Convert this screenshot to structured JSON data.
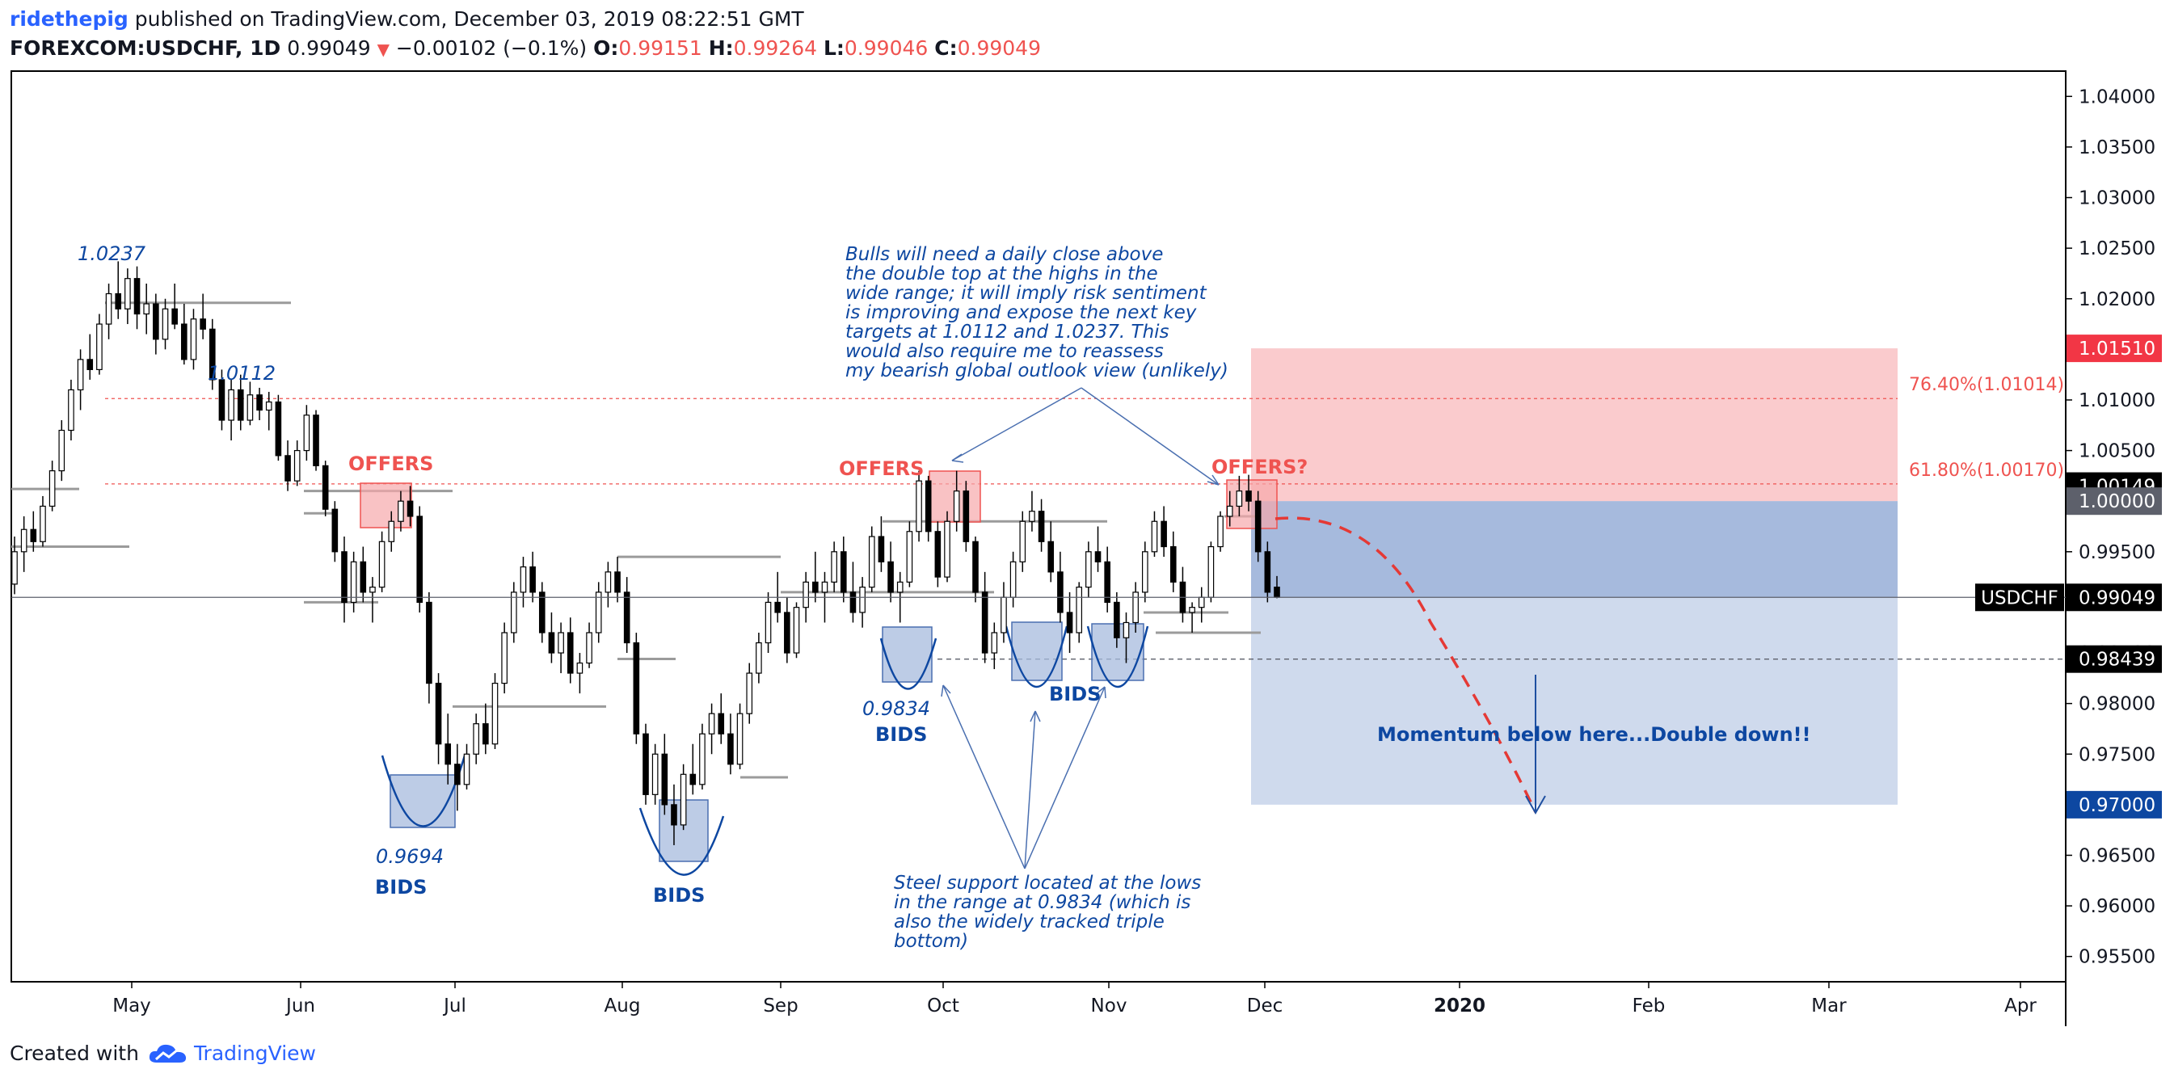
{
  "header": {
    "user": "ridethepig",
    "published": "published on TradingView.com, December 03, 2019 08:22:51 GMT",
    "symbol": "FOREXCOM:USDCHF, 1D",
    "last": "0.99049",
    "change": "−0.00102 (−0.1%)",
    "o_label": "O:",
    "o": "0.99151",
    "h_label": "H:",
    "h": "0.99264",
    "l_label": "L:",
    "l": "0.99046",
    "c_label": "C:",
    "c": "0.99049"
  },
  "footer": {
    "created": "Created with",
    "brand": "TradingView",
    "logo_icon": "tradingview-cloud-icon"
  },
  "chart_data": {
    "type": "candlestick",
    "symbol": "USDCHF",
    "ylim": [
      0.9525,
      1.0425
    ],
    "y_ticks": [
      "1.04000",
      "1.03500",
      "1.03000",
      "1.02500",
      "1.02000",
      "1.01500",
      "1.01000",
      "1.00500",
      "1.00000",
      "0.99500",
      "0.99000",
      "0.98500",
      "0.98000",
      "0.97500",
      "0.97000",
      "0.96500",
      "0.96000",
      "0.95500"
    ],
    "x_ticks": [
      "May",
      "Jun",
      "Jul",
      "Aug",
      "Sep",
      "Oct",
      "Nov",
      "Dec",
      "2020",
      "Feb",
      "Mar",
      "Apr"
    ],
    "price_labels": [
      {
        "text": "1.01510",
        "value": 1.0151,
        "bg": "#f23645",
        "fg": "#ffffff"
      },
      {
        "text": "1.00149",
        "value": 1.00149,
        "bg": "#000000",
        "fg": "#ffffff"
      },
      {
        "text": "1.00000",
        "value": 1.0,
        "bg": "#5d606b",
        "fg": "#ffffff"
      },
      {
        "text": "0.99049",
        "value": 0.99049,
        "bg": "#000000",
        "fg": "#ffffff",
        "tag": "USDCHF"
      },
      {
        "text": "0.98439",
        "value": 0.98439,
        "bg": "#000000",
        "fg": "#ffffff"
      },
      {
        "text": "0.97000",
        "value": 0.97,
        "bg": "#0d47a1",
        "fg": "#ffffff"
      }
    ],
    "fib_levels": [
      {
        "text": "76.40%(1.01014)",
        "value": 1.01014
      },
      {
        "text": "61.80%(1.00170)",
        "value": 1.0017
      }
    ],
    "position": {
      "stop": 1.0151,
      "entry": 1.0,
      "target": 0.97
    },
    "key_levels": [
      1.0237,
      1.0112,
      0.9834,
      0.9694
    ],
    "candles": [
      [
        0.9918,
        0.9965,
        0.9908,
        0.995
      ],
      [
        0.995,
        0.9985,
        0.993,
        0.9972
      ],
      [
        0.9972,
        0.999,
        0.995,
        0.996
      ],
      [
        0.996,
        1.0005,
        0.9955,
        0.9995
      ],
      [
        0.9995,
        1.004,
        0.999,
        1.003
      ],
      [
        1.003,
        1.008,
        1.002,
        1.007
      ],
      [
        1.007,
        1.012,
        1.006,
        1.011
      ],
      [
        1.011,
        1.015,
        1.009,
        1.014
      ],
      [
        1.014,
        1.0165,
        1.012,
        1.013
      ],
      [
        1.013,
        1.0185,
        1.0125,
        1.0175
      ],
      [
        1.0175,
        1.0215,
        1.016,
        1.0205
      ],
      [
        1.0205,
        1.0237,
        1.018,
        1.019
      ],
      [
        1.019,
        1.023,
        1.0175,
        1.022
      ],
      [
        1.022,
        1.0232,
        1.017,
        1.0185
      ],
      [
        1.0185,
        1.0215,
        1.0165,
        1.0195
      ],
      [
        1.0195,
        1.0205,
        1.0145,
        1.016
      ],
      [
        1.016,
        1.02,
        1.015,
        1.019
      ],
      [
        1.019,
        1.0215,
        1.017,
        1.0175
      ],
      [
        1.0175,
        1.0195,
        1.0135,
        1.014
      ],
      [
        1.014,
        1.019,
        1.013,
        1.018
      ],
      [
        1.018,
        1.0205,
        1.016,
        1.017
      ],
      [
        1.017,
        1.018,
        1.011,
        1.012
      ],
      [
        1.012,
        1.013,
        1.007,
        1.008
      ],
      [
        1.008,
        1.012,
        1.006,
        1.011
      ],
      [
        1.011,
        1.0125,
        1.007,
        1.008
      ],
      [
        1.008,
        1.0118,
        1.0075,
        1.0105
      ],
      [
        1.0105,
        1.0112,
        1.008,
        1.009
      ],
      [
        1.009,
        1.0108,
        1.007,
        1.0098
      ],
      [
        1.0098,
        1.0105,
        1.004,
        1.0045
      ],
      [
        1.0045,
        1.006,
        1.001,
        1.002
      ],
      [
        1.002,
        1.006,
        1.0015,
        1.005
      ],
      [
        1.005,
        1.0095,
        1.004,
        1.0085
      ],
      [
        1.0085,
        1.009,
        1.003,
        1.0035
      ],
      [
        1.0035,
        1.004,
        0.9985,
        0.9992
      ],
      [
        0.9992,
        1.0,
        0.994,
        0.995
      ],
      [
        0.995,
        0.9965,
        0.988,
        0.99
      ],
      [
        0.99,
        0.995,
        0.989,
        0.994
      ],
      [
        0.994,
        0.9955,
        0.99,
        0.991
      ],
      [
        0.991,
        0.9925,
        0.988,
        0.9915
      ],
      [
        0.9915,
        0.997,
        0.991,
        0.996
      ],
      [
        0.996,
        0.999,
        0.995,
        0.998
      ],
      [
        0.998,
        1.001,
        0.997,
        1.0
      ],
      [
        1.0,
        1.0015,
        0.9975,
        0.9985
      ],
      [
        0.9985,
        0.9995,
        0.989,
        0.99
      ],
      [
        0.99,
        0.991,
        0.98,
        0.982
      ],
      [
        0.982,
        0.983,
        0.974,
        0.976
      ],
      [
        0.976,
        0.979,
        0.972,
        0.974
      ],
      [
        0.974,
        0.976,
        0.9694,
        0.972
      ],
      [
        0.972,
        0.976,
        0.9715,
        0.975
      ],
      [
        0.975,
        0.979,
        0.974,
        0.978
      ],
      [
        0.978,
        0.98,
        0.975,
        0.976
      ],
      [
        0.976,
        0.983,
        0.9755,
        0.982
      ],
      [
        0.982,
        0.988,
        0.981,
        0.987
      ],
      [
        0.987,
        0.992,
        0.986,
        0.991
      ],
      [
        0.991,
        0.9945,
        0.9895,
        0.9935
      ],
      [
        0.9935,
        0.995,
        0.99,
        0.991
      ],
      [
        0.991,
        0.992,
        0.986,
        0.987
      ],
      [
        0.987,
        0.989,
        0.984,
        0.985
      ],
      [
        0.985,
        0.988,
        0.983,
        0.987
      ],
      [
        0.987,
        0.9885,
        0.982,
        0.983
      ],
      [
        0.983,
        0.985,
        0.981,
        0.984
      ],
      [
        0.984,
        0.988,
        0.9835,
        0.987
      ],
      [
        0.987,
        0.992,
        0.986,
        0.991
      ],
      [
        0.991,
        0.994,
        0.9895,
        0.993
      ],
      [
        0.993,
        0.9945,
        0.99,
        0.991
      ],
      [
        0.991,
        0.9925,
        0.985,
        0.986
      ],
      [
        0.986,
        0.987,
        0.976,
        0.977
      ],
      [
        0.977,
        0.978,
        0.97,
        0.971
      ],
      [
        0.971,
        0.976,
        0.97,
        0.975
      ],
      [
        0.975,
        0.977,
        0.969,
        0.97
      ],
      [
        0.97,
        0.972,
        0.966,
        0.968
      ],
      [
        0.968,
        0.974,
        0.9675,
        0.973
      ],
      [
        0.973,
        0.976,
        0.971,
        0.972
      ],
      [
        0.972,
        0.978,
        0.9715,
        0.977
      ],
      [
        0.977,
        0.98,
        0.975,
        0.979
      ],
      [
        0.979,
        0.981,
        0.976,
        0.977
      ],
      [
        0.977,
        0.979,
        0.973,
        0.974
      ],
      [
        0.974,
        0.98,
        0.9735,
        0.979
      ],
      [
        0.979,
        0.984,
        0.978,
        0.983
      ],
      [
        0.983,
        0.987,
        0.982,
        0.986
      ],
      [
        0.986,
        0.991,
        0.985,
        0.99
      ],
      [
        0.99,
        0.993,
        0.988,
        0.989
      ],
      [
        0.989,
        0.9905,
        0.984,
        0.985
      ],
      [
        0.985,
        0.99,
        0.9845,
        0.9895
      ],
      [
        0.9895,
        0.993,
        0.988,
        0.992
      ],
      [
        0.992,
        0.995,
        0.99,
        0.991
      ],
      [
        0.991,
        0.993,
        0.988,
        0.992
      ],
      [
        0.992,
        0.996,
        0.991,
        0.995
      ],
      [
        0.995,
        0.9965,
        0.99,
        0.991
      ],
      [
        0.991,
        0.994,
        0.988,
        0.989
      ],
      [
        0.989,
        0.9925,
        0.9875,
        0.9915
      ],
      [
        0.9915,
        0.9975,
        0.991,
        0.9965
      ],
      [
        0.9965,
        0.9985,
        0.993,
        0.994
      ],
      [
        0.994,
        0.996,
        0.99,
        0.991
      ],
      [
        0.991,
        0.993,
        0.988,
        0.992
      ],
      [
        0.992,
        0.998,
        0.9915,
        0.997
      ],
      [
        0.997,
        1.003,
        0.996,
        1.002
      ],
      [
        1.002,
        1.0025,
        0.996,
        0.997
      ],
      [
        0.997,
        0.998,
        0.9915,
        0.9925
      ],
      [
        0.9925,
        0.999,
        0.992,
        0.998
      ],
      [
        0.998,
        1.003,
        0.997,
        1.001
      ],
      [
        1.001,
        1.002,
        0.995,
        0.996
      ],
      [
        0.996,
        0.9965,
        0.99,
        0.991
      ],
      [
        0.991,
        0.993,
        0.984,
        0.985
      ],
      [
        0.985,
        0.988,
        0.9834,
        0.987
      ],
      [
        0.987,
        0.992,
        0.986,
        0.9905
      ],
      [
        0.9905,
        0.995,
        0.9895,
        0.994
      ],
      [
        0.994,
        0.999,
        0.993,
        0.998
      ],
      [
        0.998,
        1.001,
        0.997,
        0.999
      ],
      [
        0.999,
        1.0002,
        0.995,
        0.996
      ],
      [
        0.996,
        0.998,
        0.992,
        0.993
      ],
      [
        0.993,
        0.995,
        0.988,
        0.989
      ],
      [
        0.989,
        0.991,
        0.985,
        0.987
      ],
      [
        0.987,
        0.992,
        0.986,
        0.9915
      ],
      [
        0.9915,
        0.996,
        0.9905,
        0.995
      ],
      [
        0.995,
        0.9975,
        0.993,
        0.994
      ],
      [
        0.994,
        0.9955,
        0.989,
        0.99
      ],
      [
        0.99,
        0.991,
        0.9855,
        0.9865
      ],
      [
        0.9865,
        0.989,
        0.984,
        0.988
      ],
      [
        0.988,
        0.992,
        0.987,
        0.991
      ],
      [
        0.991,
        0.996,
        0.99,
        0.995
      ],
      [
        0.995,
        0.999,
        0.9945,
        0.998
      ],
      [
        0.998,
        0.9995,
        0.9945,
        0.9955
      ],
      [
        0.9955,
        0.997,
        0.991,
        0.992
      ],
      [
        0.992,
        0.9935,
        0.988,
        0.989
      ],
      [
        0.989,
        0.99,
        0.987,
        0.9895
      ],
      [
        0.9895,
        0.9915,
        0.988,
        0.9905
      ],
      [
        0.9905,
        0.996,
        0.99,
        0.9955
      ],
      [
        0.9955,
        0.999,
        0.995,
        0.9985
      ],
      [
        0.9985,
        1.001,
        0.9975,
        0.9995
      ],
      [
        0.9995,
        1.0025,
        0.9985,
        1.001
      ],
      [
        1.001,
        1.0026,
        0.999,
        1.0
      ],
      [
        1.0,
        1.001,
        0.994,
        0.995
      ],
      [
        0.995,
        0.996,
        0.99,
        0.991
      ],
      [
        0.9915,
        0.9926,
        0.9904,
        0.9905
      ]
    ]
  },
  "annotations": {
    "offers1": "OFFERS",
    "offers2": "OFFERS",
    "offers3": "OFFERS?",
    "bids1": "BIDS",
    "bids2": "BIDS",
    "bids3": "BIDS",
    "bids4": "BIDS",
    "level_1_0237": "1.0237",
    "level_1_0112": "1.0112",
    "level_0_9834": "0.9834",
    "level_0_9694": "0.9694",
    "momentum": "Momentum below here...Double down!!",
    "bulls_note": [
      "Bulls will need a daily close above",
      "the double top at the highs in the",
      "wide range; it will imply risk sentiment",
      "is improving and expose the next key",
      "targets at 1.0112 and 1.0237. This",
      "would also require me to reassess",
      "my bearish global outlook view (unlikely)"
    ],
    "support_note": [
      "Steel support located at the lows",
      "in the range at 0.9834 (which is",
      "also the widely tracked triple",
      "bottom)"
    ]
  }
}
